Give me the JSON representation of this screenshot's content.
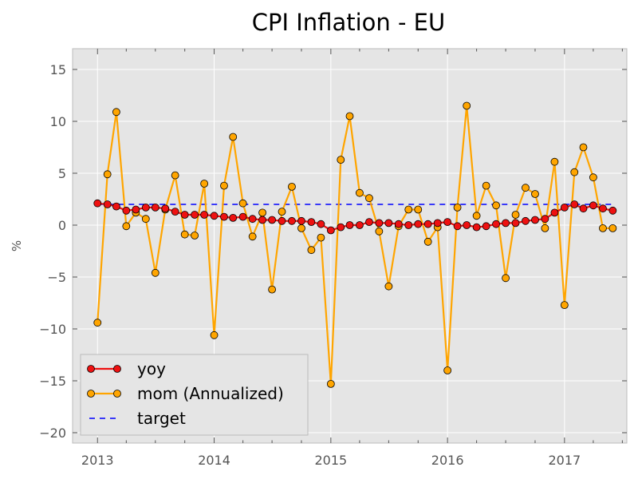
{
  "chart_data": {
    "type": "line",
    "title": "CPI Inflation - EU",
    "xlabel": "",
    "ylabel": "%",
    "x_start": "2013-01",
    "x_frequency": "monthly",
    "xlim": [
      "2012-10-15",
      "2017-07-15"
    ],
    "ylim": [
      -21,
      17
    ],
    "x_ticks": [
      "2013",
      "2014",
      "2015",
      "2016",
      "2017"
    ],
    "y_ticks": [
      15,
      10,
      5,
      0,
      -5,
      -10,
      -15,
      -20
    ],
    "grid": true,
    "legend_position": "lower-left",
    "series": [
      {
        "name": "yoy",
        "color": "#ee1111",
        "marker": "circle",
        "values": [
          2.1,
          2.0,
          1.8,
          1.4,
          1.5,
          1.7,
          1.7,
          1.6,
          1.3,
          1.0,
          1.0,
          1.0,
          0.9,
          0.8,
          0.7,
          0.8,
          0.6,
          0.5,
          0.5,
          0.4,
          0.4,
          0.4,
          0.3,
          0.1,
          -0.5,
          -0.2,
          0.0,
          0.0,
          0.3,
          0.2,
          0.2,
          0.1,
          0.0,
          0.1,
          0.1,
          0.2,
          0.3,
          -0.1,
          0.0,
          -0.2,
          -0.1,
          0.1,
          0.2,
          0.2,
          0.4,
          0.5,
          0.6,
          1.2,
          1.7,
          2.0,
          1.6,
          1.9,
          1.6,
          1.4
        ]
      },
      {
        "name": "mom (Annualized)",
        "color": "#ffa500",
        "marker": "circle",
        "values": [
          -9.4,
          4.9,
          10.9,
          -0.1,
          1.2,
          0.6,
          -4.6,
          1.5,
          4.8,
          -0.9,
          -1.0,
          4.0,
          -10.6,
          3.8,
          8.5,
          2.1,
          -1.1,
          1.2,
          -6.2,
          1.3,
          3.7,
          -0.3,
          -2.4,
          -1.2,
          -15.3,
          6.3,
          10.5,
          3.1,
          2.6,
          -0.6,
          -5.9,
          -0.1,
          1.5,
          1.5,
          -1.6,
          -0.2,
          -14.0,
          1.7,
          11.5,
          0.9,
          3.8,
          1.9,
          -5.1,
          1.0,
          3.6,
          3.0,
          -0.3,
          6.1,
          -7.7,
          5.1,
          7.5,
          4.6,
          -0.3,
          -0.3
        ]
      },
      {
        "name": "target",
        "color": "#0000ff",
        "dash": "dashed",
        "values": [
          2.0,
          2.0
        ]
      }
    ]
  }
}
